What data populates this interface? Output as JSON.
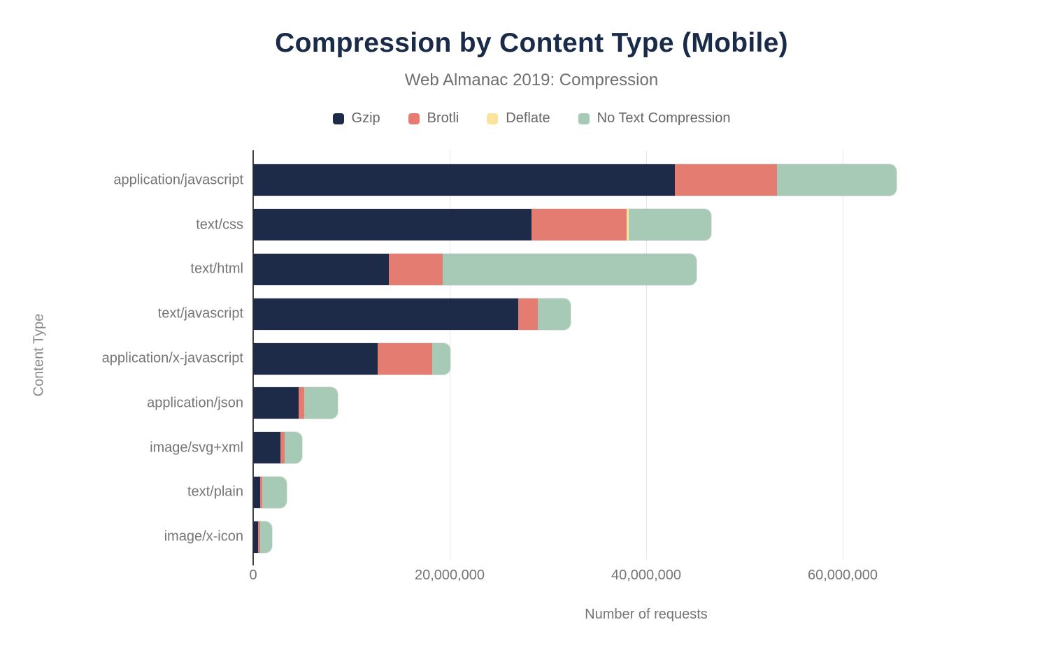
{
  "chart_data": {
    "type": "bar",
    "orientation": "horizontal",
    "stacked": true,
    "title": "Compression by Content Type (Mobile)",
    "subtitle": "Web Almanac 2019: Compression",
    "xlabel": "Number of requests",
    "ylabel": "Content Type",
    "xlim": [
      0,
      80000000
    ],
    "grid": "vertical-only",
    "legend_position": "top-center",
    "xticks": [
      {
        "value": 0,
        "label": "0"
      },
      {
        "value": 20000000,
        "label": "20,000,000"
      },
      {
        "value": 40000000,
        "label": "40,000,000"
      },
      {
        "value": 60000000,
        "label": "60,000,000"
      }
    ],
    "categories": [
      "application/javascript",
      "text/css",
      "text/html",
      "text/javascript",
      "application/x-javascript",
      "application/json",
      "image/svg+xml",
      "text/plain",
      "image/x-icon"
    ],
    "series": [
      {
        "name": "Gzip",
        "color": "#1e2b48",
        "values": [
          42900000,
          28300000,
          13800000,
          27000000,
          12700000,
          4600000,
          2800000,
          700000,
          500000
        ]
      },
      {
        "name": "Brotli",
        "color": "#e47c72",
        "values": [
          10400000,
          9700000,
          5500000,
          2000000,
          5500000,
          600000,
          400000,
          200000,
          200000
        ]
      },
      {
        "name": "Deflate",
        "color": "#fae49c",
        "values": [
          0,
          200000,
          0,
          0,
          0,
          0,
          0,
          0,
          0
        ]
      },
      {
        "name": "No Text Compression",
        "color": "#a7cab6",
        "values": [
          12200000,
          8400000,
          25800000,
          3300000,
          1900000,
          3400000,
          1800000,
          2500000,
          1200000
        ]
      }
    ],
    "colors": {
      "title": "#1a2b49",
      "subtitle_text": "#6f6f6f",
      "axis_text": "#757575",
      "axis_line": "#424242",
      "gridline": "#e7e7e7"
    }
  }
}
